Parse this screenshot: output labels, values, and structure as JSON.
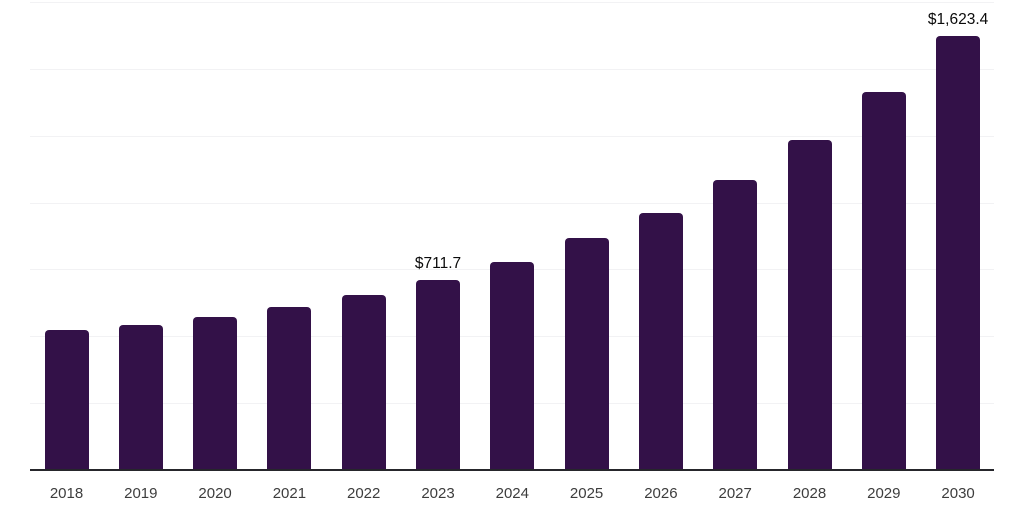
{
  "chart_data": {
    "type": "bar",
    "title": "",
    "xlabel": "",
    "ylabel": "",
    "categories": [
      "2018",
      "2019",
      "2020",
      "2021",
      "2022",
      "2023",
      "2024",
      "2025",
      "2026",
      "2027",
      "2028",
      "2029",
      "2030"
    ],
    "values": [
      522,
      543,
      574,
      608,
      656,
      711.7,
      778,
      866,
      963,
      1086,
      1236,
      1414,
      1623.4
    ],
    "data_labels": [
      "",
      "",
      "",
      "",
      "",
      "$711.7",
      "",
      "",
      "",
      "",
      "",
      "",
      "$1,623.4"
    ],
    "ylim": [
      0,
      1750
    ],
    "gridline_step": 250,
    "grid": true,
    "y_axis_tick_labels_visible": false,
    "legend_position": "none",
    "colors": {
      "bar": "#331148",
      "axis_line": "#26262b",
      "gridline": "#f2f2f4",
      "value_label": "#0b0b0b",
      "tick_label": "#3d3d3d",
      "background": "#ffffff"
    }
  }
}
